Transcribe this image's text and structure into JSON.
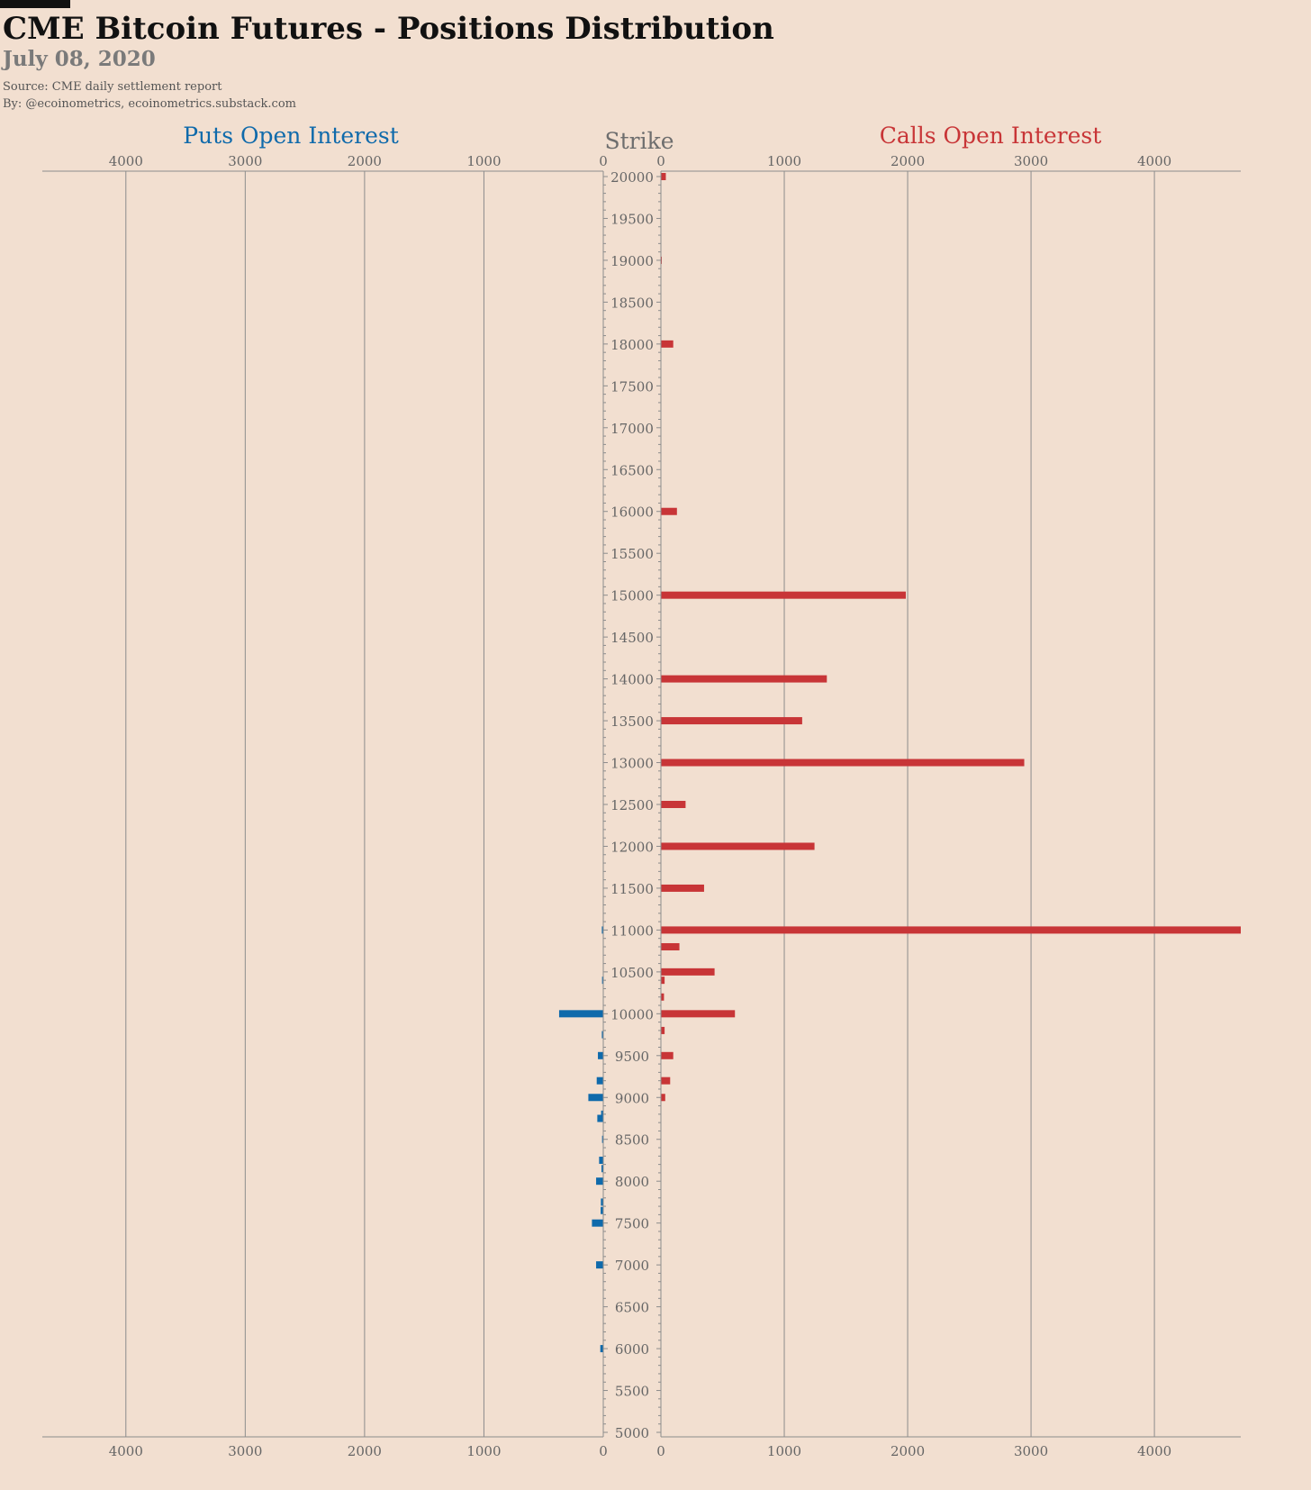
{
  "title": "CME Bitcoin Futures - Positions Distribution",
  "subtitle": "July 08, 2020",
  "source": "Source: CME daily settlement report",
  "byline": "By: @ecoinometrics, ecoinometrics.substack.com",
  "colors": {
    "background": "#f2dfd0",
    "puts": "#0f6aab",
    "calls": "#c83537",
    "grid": "#8c8c8c",
    "text": "#666666"
  },
  "chart_data": {
    "type": "bar",
    "orientation": "horizontal-butterfly",
    "puts_title": "Puts Open Interest",
    "calls_title": "Calls Open Interest",
    "strike_label": "Strike",
    "xlim": [
      0,
      4700
    ],
    "x_ticks": [
      0,
      1000,
      2000,
      3000,
      4000
    ],
    "ylim": [
      5000,
      20000
    ],
    "y_ticks": [
      5000,
      5500,
      6000,
      6500,
      7000,
      7500,
      8000,
      8500,
      9000,
      9500,
      10000,
      10500,
      11000,
      11500,
      12000,
      12500,
      13000,
      13500,
      14000,
      14500,
      15000,
      15500,
      16000,
      16500,
      17000,
      17500,
      18000,
      18500,
      19000,
      19500,
      20000
    ],
    "calls": [
      {
        "strike": 20000,
        "value": 40
      },
      {
        "strike": 19000,
        "value": 5
      },
      {
        "strike": 18000,
        "value": 100
      },
      {
        "strike": 16000,
        "value": 130
      },
      {
        "strike": 15000,
        "value": 1985
      },
      {
        "strike": 14000,
        "value": 1345
      },
      {
        "strike": 13500,
        "value": 1145
      },
      {
        "strike": 13000,
        "value": 2945
      },
      {
        "strike": 12500,
        "value": 200
      },
      {
        "strike": 12000,
        "value": 1245
      },
      {
        "strike": 11500,
        "value": 350
      },
      {
        "strike": 11000,
        "value": 4700
      },
      {
        "strike": 10800,
        "value": 150
      },
      {
        "strike": 10500,
        "value": 435
      },
      {
        "strike": 10400,
        "value": 30
      },
      {
        "strike": 10200,
        "value": 25
      },
      {
        "strike": 10000,
        "value": 600
      },
      {
        "strike": 9800,
        "value": 30
      },
      {
        "strike": 9500,
        "value": 100
      },
      {
        "strike": 9200,
        "value": 75
      },
      {
        "strike": 9000,
        "value": 35
      }
    ],
    "puts": [
      {
        "strike": 11000,
        "value": 12
      },
      {
        "strike": 10400,
        "value": 10
      },
      {
        "strike": 10000,
        "value": 370
      },
      {
        "strike": 9750,
        "value": 12
      },
      {
        "strike": 9500,
        "value": 45
      },
      {
        "strike": 9200,
        "value": 55
      },
      {
        "strike": 9000,
        "value": 125
      },
      {
        "strike": 8800,
        "value": 18
      },
      {
        "strike": 8750,
        "value": 50
      },
      {
        "strike": 8500,
        "value": 10
      },
      {
        "strike": 8250,
        "value": 35
      },
      {
        "strike": 8150,
        "value": 15
      },
      {
        "strike": 8000,
        "value": 60
      },
      {
        "strike": 7750,
        "value": 20
      },
      {
        "strike": 7650,
        "value": 22
      },
      {
        "strike": 7500,
        "value": 95
      },
      {
        "strike": 7000,
        "value": 60
      },
      {
        "strike": 6000,
        "value": 25
      }
    ]
  }
}
